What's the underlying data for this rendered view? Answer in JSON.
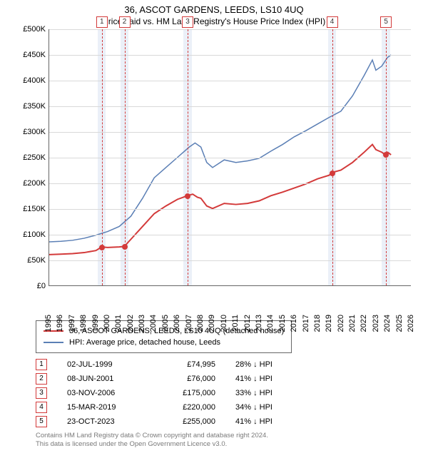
{
  "title": "36, ASCOT GARDENS, LEEDS, LS10 4UQ",
  "subtitle": "Price paid vs. HM Land Registry's House Price Index (HPI)",
  "chart": {
    "type": "line",
    "background_color": "#ffffff",
    "grid_color": "#d9d9d9",
    "axis_color": "#666666",
    "marker_line_color": "#d33a3a",
    "marker_band_color": "#e7edf7",
    "x_years": [
      1995,
      1996,
      1997,
      1998,
      1999,
      2000,
      2001,
      2002,
      2003,
      2004,
      2005,
      2006,
      2007,
      2008,
      2009,
      2010,
      2011,
      2012,
      2013,
      2014,
      2015,
      2016,
      2017,
      2018,
      2019,
      2020,
      2021,
      2022,
      2023,
      2024,
      2025,
      2026
    ],
    "xmin": 1995,
    "xmax": 2026,
    "ymin": 0,
    "ymax": 500000,
    "ytick_step": 50000,
    "ytick_labels": [
      "£0",
      "£50K",
      "£100K",
      "£150K",
      "£200K",
      "£250K",
      "£300K",
      "£350K",
      "£400K",
      "£450K",
      "£500K"
    ],
    "x_fontsize": 11,
    "y_fontsize": 11,
    "series": [
      {
        "name": "property",
        "color": "#d33a3a",
        "width": 2,
        "points": [
          [
            1995.0,
            60000
          ],
          [
            1996.0,
            61000
          ],
          [
            1997.0,
            62000
          ],
          [
            1998.0,
            64000
          ],
          [
            1999.0,
            68000
          ],
          [
            1999.5,
            74995
          ],
          [
            2000.0,
            74000
          ],
          [
            2001.0,
            75000
          ],
          [
            2001.44,
            76000
          ],
          [
            2002.0,
            90000
          ],
          [
            2003.0,
            115000
          ],
          [
            2004.0,
            140000
          ],
          [
            2005.0,
            155000
          ],
          [
            2006.0,
            168000
          ],
          [
            2006.84,
            175000
          ],
          [
            2007.3,
            178000
          ],
          [
            2007.7,
            172000
          ],
          [
            2008.0,
            170000
          ],
          [
            2008.5,
            155000
          ],
          [
            2009.0,
            150000
          ],
          [
            2010.0,
            160000
          ],
          [
            2011.0,
            158000
          ],
          [
            2012.0,
            160000
          ],
          [
            2013.0,
            165000
          ],
          [
            2014.0,
            175000
          ],
          [
            2015.0,
            182000
          ],
          [
            2016.0,
            190000
          ],
          [
            2017.0,
            198000
          ],
          [
            2018.0,
            208000
          ],
          [
            2019.0,
            215000
          ],
          [
            2019.2,
            220000
          ],
          [
            2020.0,
            225000
          ],
          [
            2021.0,
            240000
          ],
          [
            2022.0,
            260000
          ],
          [
            2022.7,
            275000
          ],
          [
            2023.0,
            265000
          ],
          [
            2023.5,
            260000
          ],
          [
            2023.81,
            255000
          ],
          [
            2024.0,
            260000
          ],
          [
            2024.3,
            255000
          ]
        ]
      },
      {
        "name": "hpi",
        "color": "#5b7fb5",
        "width": 1.5,
        "points": [
          [
            1995.0,
            85000
          ],
          [
            1996.0,
            86000
          ],
          [
            1997.0,
            88000
          ],
          [
            1998.0,
            92000
          ],
          [
            1999.0,
            98000
          ],
          [
            2000.0,
            105000
          ],
          [
            2001.0,
            115000
          ],
          [
            2002.0,
            135000
          ],
          [
            2003.0,
            170000
          ],
          [
            2004.0,
            210000
          ],
          [
            2005.0,
            230000
          ],
          [
            2006.0,
            250000
          ],
          [
            2007.0,
            270000
          ],
          [
            2007.5,
            278000
          ],
          [
            2008.0,
            270000
          ],
          [
            2008.5,
            240000
          ],
          [
            2009.0,
            230000
          ],
          [
            2010.0,
            245000
          ],
          [
            2011.0,
            240000
          ],
          [
            2012.0,
            243000
          ],
          [
            2013.0,
            248000
          ],
          [
            2014.0,
            262000
          ],
          [
            2015.0,
            275000
          ],
          [
            2016.0,
            290000
          ],
          [
            2017.0,
            302000
          ],
          [
            2018.0,
            315000
          ],
          [
            2019.0,
            328000
          ],
          [
            2020.0,
            340000
          ],
          [
            2021.0,
            370000
          ],
          [
            2022.0,
            410000
          ],
          [
            2022.7,
            440000
          ],
          [
            2023.0,
            420000
          ],
          [
            2023.5,
            428000
          ],
          [
            2024.0,
            445000
          ],
          [
            2024.3,
            450000
          ]
        ]
      }
    ],
    "sale_markers": [
      {
        "n": 1,
        "year": 1999.5,
        "price": 74995
      },
      {
        "n": 2,
        "year": 2001.44,
        "price": 76000
      },
      {
        "n": 3,
        "year": 2006.84,
        "price": 175000
      },
      {
        "n": 4,
        "year": 2019.2,
        "price": 220000
      },
      {
        "n": 5,
        "year": 2023.81,
        "price": 255000
      }
    ],
    "dot_color": "#d33a3a",
    "band_half_width_years": 0.35
  },
  "legend": {
    "items": [
      {
        "color": "#d33a3a",
        "label": "36, ASCOT GARDENS, LEEDS, LS10 4UQ (detached house)"
      },
      {
        "color": "#5b7fb5",
        "label": "HPI: Average price, detached house, Leeds"
      }
    ]
  },
  "sales_table": [
    {
      "n": "1",
      "date": "02-JUL-1999",
      "price": "£74,995",
      "diff": "28% ↓ HPI"
    },
    {
      "n": "2",
      "date": "08-JUN-2001",
      "price": "£76,000",
      "diff": "41% ↓ HPI"
    },
    {
      "n": "3",
      "date": "03-NOV-2006",
      "price": "£175,000",
      "diff": "33% ↓ HPI"
    },
    {
      "n": "4",
      "date": "15-MAR-2019",
      "price": "£220,000",
      "diff": "34% ↓ HPI"
    },
    {
      "n": "5",
      "date": "23-OCT-2023",
      "price": "£255,000",
      "diff": "41% ↓ HPI"
    }
  ],
  "footer": {
    "line1": "Contains HM Land Registry data © Crown copyright and database right 2024.",
    "line2": "This data is licensed under the Open Government Licence v3.0."
  }
}
